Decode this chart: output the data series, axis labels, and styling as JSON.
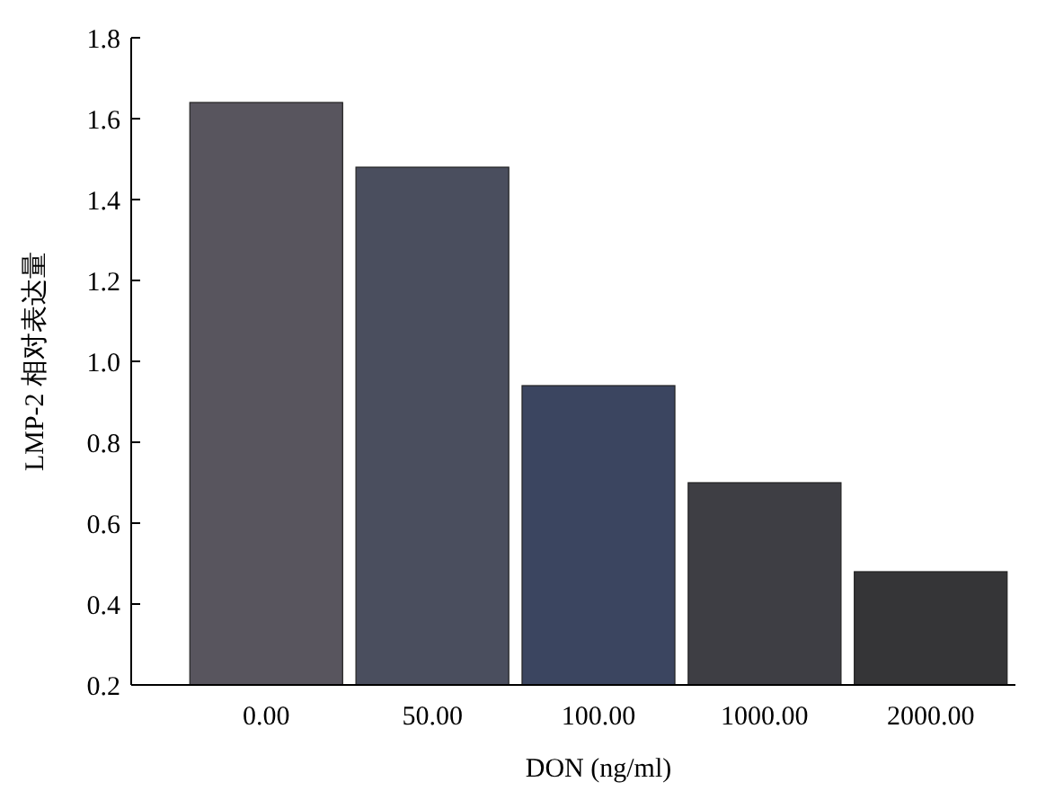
{
  "chart_data": {
    "type": "bar",
    "xlabel": "DON (ng/ml)",
    "ylabel": "LMP-2 相对表达量",
    "categories": [
      "0.00",
      "50.00",
      "100.00",
      "1000.00",
      "2000.00"
    ],
    "values": [
      1.64,
      1.48,
      0.94,
      0.7,
      0.48
    ],
    "colors": [
      "#58555e",
      "#4a4e5e",
      "#3b4560",
      "#3e3e44",
      "#353537"
    ],
    "ylim": [
      0.2,
      1.8
    ],
    "yticks": [
      0.2,
      0.4,
      0.6,
      0.8,
      {
        "value": 1,
        "label": "1.0"
      },
      1.2,
      1.4,
      1.6,
      1.8
    ],
    "grid": false
  }
}
